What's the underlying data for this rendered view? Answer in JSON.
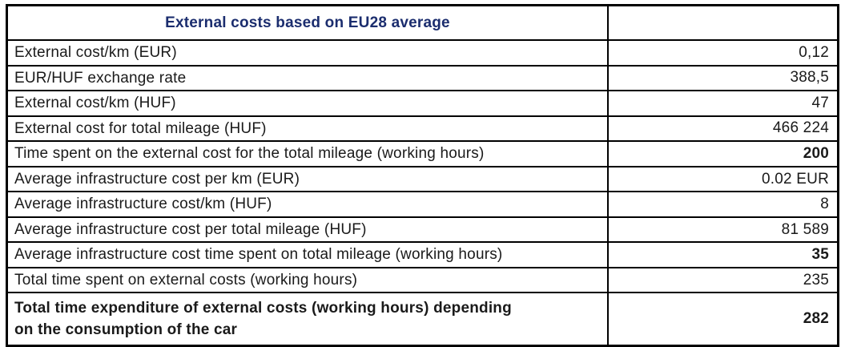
{
  "table": {
    "title": "External costs based on EU28 average",
    "colors": {
      "title_text": "#1b2d6e",
      "border": "#000000",
      "body_text": "#1a1a1a",
      "background": "#ffffff"
    },
    "rows": [
      {
        "label": "External cost/km (EUR)",
        "value": "0,12",
        "label_bold": false,
        "value_bold": false
      },
      {
        "label": "EUR/HUF exchange rate",
        "value": "388,5",
        "label_bold": false,
        "value_bold": false
      },
      {
        "label": "External cost/km (HUF)",
        "value": "47",
        "label_bold": false,
        "value_bold": false
      },
      {
        "label": "External cost for total mileage (HUF)",
        "value": "466 224",
        "label_bold": false,
        "value_bold": false
      },
      {
        "label": "Time spent on the external cost for the total mileage (working hours)",
        "value": "200",
        "label_bold": false,
        "value_bold": true
      },
      {
        "label": "Average infrastructure cost per km (EUR)",
        "value": "0.02 EUR",
        "label_bold": false,
        "value_bold": false
      },
      {
        "label": "Average infrastructure cost/km (HUF)",
        "value": "8",
        "label_bold": false,
        "value_bold": false
      },
      {
        "label": "Average infrastructure cost per total mileage (HUF)",
        "value": "81 589",
        "label_bold": false,
        "value_bold": false
      },
      {
        "label": "Average infrastructure cost time spent on total mileage (working hours)",
        "value": "35",
        "label_bold": false,
        "value_bold": true
      },
      {
        "label": "Total time spent on external costs (working hours)",
        "value": "235",
        "label_bold": false,
        "value_bold": false
      },
      {
        "label": "Total time expenditure of external costs (working hours) depending\non the consumption of the car",
        "value": "282",
        "label_bold": true,
        "value_bold": true
      }
    ]
  }
}
